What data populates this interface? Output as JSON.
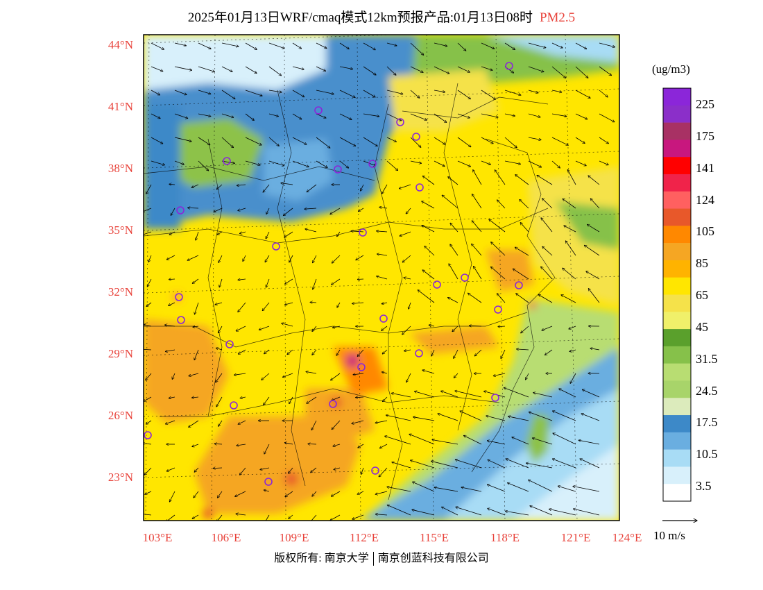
{
  "title": {
    "main": "2025年01月13日WRF/cmaq模式12km预报产品:01月13日08时",
    "pollutant": "PM2.5"
  },
  "axes": {
    "lat_labels": [
      "44°N",
      "41°N",
      "38°N",
      "35°N",
      "32°N",
      "29°N",
      "26°N",
      "23°N"
    ],
    "lon_labels": [
      "103°E",
      "106°E",
      "109°E",
      "112°E",
      "115°E",
      "118°E",
      "121°E",
      "124°E"
    ]
  },
  "colorbar": {
    "unit": "(ug/m3)",
    "labels": [
      "225",
      "175",
      "141",
      "124",
      "105",
      "85",
      "65",
      "45",
      "31.5",
      "24.5",
      "17.5",
      "10.5",
      "3.5"
    ],
    "colors": [
      "#8b26d9",
      "#8b2fc9",
      "#a83164",
      "#c8177e",
      "#ff0000",
      "#f0234a",
      "#ff6060",
      "#e8582a",
      "#ff8800",
      "#f5a623",
      "#ffb300",
      "#ffe600",
      "#f5e24a",
      "#f0f06a",
      "#5aa02c",
      "#86c14a",
      "#b8dd72",
      "#a8d46a",
      "#dcebbc",
      "#3d89c8",
      "#6aaee0",
      "#a8dcf5",
      "#d8f0fb",
      "#ffffff"
    ]
  },
  "wind_scale": {
    "label": "10 m/s"
  },
  "copyright": {
    "left": "版权所有: 南京大学",
    "right": "南京创蓝科技有限公司"
  },
  "colors": {
    "axis_label": "#e8423a",
    "city_marker": "#8b26d9",
    "sea": "#a8dcf5"
  }
}
